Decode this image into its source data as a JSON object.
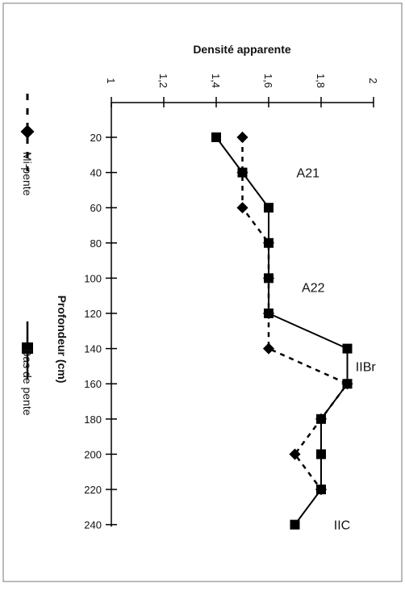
{
  "chart_data": {
    "type": "line",
    "title": "Densité apparente",
    "xlabel": "Densité apparente",
    "ylabel": "Profondeur (cm)",
    "xlim": [
      1,
      2
    ],
    "ylim": [
      0,
      240
    ],
    "y_inverted": true,
    "x_ticks": [
      "1",
      "1,2",
      "1,4",
      "1,6",
      "1,8",
      "2"
    ],
    "x_tick_values": [
      1,
      1.2,
      1.4,
      1.6,
      1.8,
      2
    ],
    "y_ticks": [
      "20",
      "40",
      "60",
      "80",
      "100",
      "120",
      "140",
      "160",
      "180",
      "200",
      "220",
      "240"
    ],
    "y_tick_values": [
      20,
      40,
      60,
      80,
      100,
      120,
      140,
      160,
      180,
      200,
      220,
      240
    ],
    "series": [
      {
        "name": "Mi-pente",
        "style": "dashed",
        "marker": "diamond",
        "color": "#000000",
        "points": [
          [
            1.5,
            20
          ],
          [
            1.5,
            40
          ],
          [
            1.5,
            60
          ],
          [
            1.6,
            80
          ],
          [
            1.6,
            100
          ],
          [
            1.6,
            120
          ],
          [
            1.6,
            140
          ],
          [
            1.9,
            160
          ],
          [
            1.8,
            180
          ],
          [
            1.7,
            200
          ],
          [
            1.8,
            220
          ]
        ]
      },
      {
        "name": "Bas de pente",
        "style": "solid",
        "marker": "square",
        "color": "#000000",
        "points": [
          [
            1.4,
            20
          ],
          [
            1.5,
            40
          ],
          [
            1.6,
            60
          ],
          [
            1.6,
            80
          ],
          [
            1.6,
            100
          ],
          [
            1.6,
            120
          ],
          [
            1.9,
            140
          ],
          [
            1.9,
            160
          ],
          [
            1.8,
            180
          ],
          [
            1.8,
            200
          ],
          [
            1.8,
            220
          ],
          [
            1.7,
            240
          ]
        ]
      }
    ],
    "horizons": [
      {
        "label": "A21",
        "x": 1.75,
        "y": 40
      },
      {
        "label": "A22",
        "x": 1.77,
        "y": 105
      },
      {
        "label": "IIBr",
        "x": 1.97,
        "y": 150
      },
      {
        "label": "IIC",
        "x": 1.88,
        "y": 240
      }
    ],
    "legend": {
      "position": "left, rotated",
      "entries": [
        "Mi-pente",
        "Bas de pente"
      ]
    },
    "grid": false
  }
}
